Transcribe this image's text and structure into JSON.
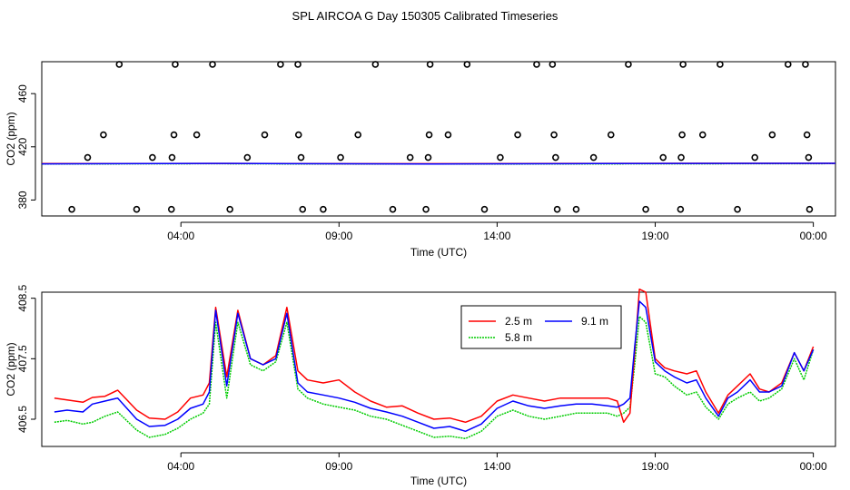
{
  "chart_data": {
    "title": "SPL AIRCOA G  Day 150305  Calibrated Timeseries",
    "charts": [
      {
        "type": "scatter+line",
        "ylabel": "CO2 (ppm)",
        "xlabel": "Time (UTC)",
        "ylim": [
          368,
          484
        ],
        "xlim": [
          -0.4,
          24.7
        ],
        "yticks": [
          380,
          420,
          460
        ],
        "ytick_labels": [
          "380",
          "420",
          "460"
        ],
        "xticks": [
          4,
          9,
          14,
          19,
          24
        ],
        "xtick_labels": [
          "04:00",
          "09:00",
          "14:00",
          "19:00",
          "00:00"
        ],
        "cal_points": [
          [
            0.55,
            373
          ],
          [
            1.05,
            412
          ],
          [
            1.55,
            429
          ],
          [
            2.05,
            482
          ],
          [
            2.6,
            373
          ],
          [
            3.1,
            412
          ],
          [
            3.7,
            373
          ],
          [
            3.72,
            412
          ],
          [
            3.78,
            429
          ],
          [
            3.82,
            482
          ],
          [
            4.5,
            429
          ],
          [
            5.0,
            482
          ],
          [
            5.55,
            373
          ],
          [
            6.1,
            412
          ],
          [
            6.65,
            429
          ],
          [
            7.15,
            482
          ],
          [
            7.7,
            482
          ],
          [
            7.72,
            429
          ],
          [
            7.8,
            412
          ],
          [
            7.85,
            373
          ],
          [
            8.5,
            373
          ],
          [
            9.05,
            412
          ],
          [
            9.6,
            429
          ],
          [
            10.15,
            482
          ],
          [
            10.7,
            373
          ],
          [
            11.25,
            412
          ],
          [
            11.82,
            412
          ],
          [
            11.85,
            429
          ],
          [
            11.88,
            482
          ],
          [
            11.75,
            373
          ],
          [
            12.45,
            429
          ],
          [
            13.05,
            482
          ],
          [
            13.6,
            373
          ],
          [
            14.1,
            412
          ],
          [
            14.65,
            429
          ],
          [
            15.25,
            482
          ],
          [
            15.75,
            482
          ],
          [
            15.8,
            429
          ],
          [
            15.85,
            412
          ],
          [
            15.9,
            373
          ],
          [
            16.5,
            373
          ],
          [
            17.05,
            412
          ],
          [
            17.6,
            429
          ],
          [
            18.15,
            482
          ],
          [
            18.7,
            373
          ],
          [
            19.25,
            412
          ],
          [
            19.8,
            373
          ],
          [
            19.82,
            412
          ],
          [
            19.85,
            429
          ],
          [
            19.88,
            482
          ],
          [
            20.5,
            429
          ],
          [
            21.05,
            482
          ],
          [
            21.6,
            373
          ],
          [
            22.15,
            412
          ],
          [
            22.7,
            429
          ],
          [
            23.2,
            482
          ],
          [
            23.75,
            482
          ],
          [
            23.8,
            429
          ],
          [
            23.85,
            412
          ],
          [
            23.88,
            373
          ]
        ],
        "series": [
          {
            "name": "2.5 m",
            "color": "#ff0000",
            "x": [
              -0.4,
              5.0,
              7.5,
              12.0,
              17.0,
              24.7
            ],
            "y": [
              407.4,
              407.5,
              407.4,
              407.3,
              407.5,
              407.6
            ]
          },
          {
            "name": "5.8 m",
            "color": "#00cc00",
            "x": [
              -0.4,
              5.0,
              7.5,
              12.0,
              17.0,
              24.7
            ],
            "y": [
              407.1,
              407.3,
              407.2,
              407.0,
              407.2,
              407.4
            ]
          },
          {
            "name": "9.1 m",
            "color": "#0000ff",
            "x": [
              -0.4,
              5.0,
              7.5,
              12.0,
              17.0,
              24.7
            ],
            "y": [
              407.2,
              407.5,
              407.3,
              407.1,
              407.4,
              407.6
            ]
          }
        ]
      },
      {
        "type": "line",
        "ylabel": "CO2 (ppm)",
        "xlabel": "Time (UTC)",
        "ylim": [
          406.05,
          408.6
        ],
        "xlim": [
          -0.4,
          24.7
        ],
        "yticks": [
          406.5,
          407.5,
          408.5
        ],
        "ytick_labels": [
          "406.5",
          "407.5",
          "408.5"
        ],
        "xticks": [
          4,
          9,
          14,
          19,
          24
        ],
        "xtick_labels": [
          "04:00",
          "09:00",
          "14:00",
          "19:00",
          "00:00"
        ],
        "legend": {
          "position": "top-right-inset",
          "entries": [
            "2.5 m",
            "9.1 m",
            "5.8 m"
          ]
        },
        "series": [
          {
            "name": "2.5 m",
            "color": "#ff0000",
            "x": [
              0.0,
              0.4,
              0.9,
              1.2,
              1.6,
              2.0,
              2.6,
              3.0,
              3.5,
              3.9,
              4.3,
              4.7,
              4.9,
              5.1,
              5.45,
              5.8,
              6.2,
              6.6,
              7.0,
              7.35,
              7.7,
              8.0,
              8.5,
              9.0,
              9.5,
              10.0,
              10.5,
              11.0,
              11.5,
              12.0,
              12.5,
              13.0,
              13.5,
              14.0,
              14.5,
              15.0,
              15.5,
              16.0,
              16.5,
              17.0,
              17.5,
              17.8,
              18.0,
              18.2,
              18.35,
              18.5,
              18.7,
              19.0,
              19.3,
              19.6,
              20.0,
              20.3,
              20.6,
              21.0,
              21.3,
              21.6,
              22.0,
              22.3,
              22.6,
              23.0,
              23.4,
              23.7,
              24.0
            ],
            "y": [
              406.85,
              406.82,
              406.78,
              406.86,
              406.88,
              406.98,
              406.65,
              406.52,
              406.5,
              406.62,
              406.85,
              406.9,
              407.1,
              408.35,
              407.2,
              408.3,
              407.5,
              407.4,
              407.55,
              408.35,
              407.3,
              407.15,
              407.1,
              407.15,
              406.95,
              406.8,
              406.7,
              406.72,
              406.6,
              406.5,
              406.52,
              406.45,
              406.55,
              406.8,
              406.9,
              406.85,
              406.8,
              406.85,
              406.85,
              406.85,
              406.85,
              406.8,
              406.45,
              406.6,
              407.6,
              408.65,
              408.6,
              407.5,
              407.35,
              407.3,
              407.25,
              407.3,
              406.95,
              406.6,
              406.9,
              407.05,
              407.25,
              407.0,
              406.95,
              407.1,
              407.6,
              407.3,
              407.7
            ]
          },
          {
            "name": "5.8 m",
            "color": "#00cc00",
            "x": [
              0.0,
              0.4,
              0.9,
              1.2,
              1.6,
              2.0,
              2.6,
              3.0,
              3.5,
              3.9,
              4.3,
              4.7,
              4.9,
              5.1,
              5.45,
              5.8,
              6.2,
              6.6,
              7.0,
              7.35,
              7.7,
              8.0,
              8.5,
              9.0,
              9.5,
              10.0,
              10.5,
              11.0,
              11.5,
              12.0,
              12.5,
              13.0,
              13.5,
              14.0,
              14.5,
              15.0,
              15.5,
              16.0,
              16.5,
              17.0,
              17.5,
              17.8,
              18.0,
              18.2,
              18.35,
              18.5,
              18.7,
              19.0,
              19.3,
              19.6,
              20.0,
              20.3,
              20.6,
              21.0,
              21.3,
              21.6,
              22.0,
              22.3,
              22.6,
              23.0,
              23.4,
              23.7,
              24.0
            ],
            "y": [
              406.45,
              406.48,
              406.42,
              406.45,
              406.55,
              406.62,
              406.32,
              406.2,
              406.25,
              406.35,
              406.5,
              406.6,
              406.75,
              408.1,
              406.85,
              408.1,
              407.4,
              407.3,
              407.45,
              408.1,
              407.0,
              406.85,
              406.75,
              406.7,
              406.65,
              406.55,
              406.5,
              406.4,
              406.3,
              406.2,
              406.22,
              406.18,
              406.3,
              406.55,
              406.65,
              406.55,
              406.5,
              406.55,
              406.6,
              406.6,
              406.6,
              406.55,
              406.6,
              406.7,
              407.4,
              408.2,
              408.1,
              407.25,
              407.2,
              407.05,
              406.9,
              406.95,
              406.7,
              406.5,
              406.75,
              406.85,
              406.95,
              406.8,
              406.85,
              407.0,
              407.5,
              407.15,
              407.65
            ]
          },
          {
            "name": "9.1 m",
            "color": "#0000ff",
            "x": [
              0.0,
              0.4,
              0.9,
              1.2,
              1.6,
              2.0,
              2.6,
              3.0,
              3.5,
              3.9,
              4.3,
              4.7,
              4.9,
              5.1,
              5.45,
              5.8,
              6.2,
              6.6,
              7.0,
              7.35,
              7.7,
              8.0,
              8.5,
              9.0,
              9.5,
              10.0,
              10.5,
              11.0,
              11.5,
              12.0,
              12.5,
              13.0,
              13.5,
              14.0,
              14.5,
              15.0,
              15.5,
              16.0,
              16.5,
              17.0,
              17.5,
              17.8,
              18.0,
              18.2,
              18.35,
              18.5,
              18.7,
              19.0,
              19.3,
              19.6,
              20.0,
              20.3,
              20.6,
              21.0,
              21.3,
              21.6,
              22.0,
              22.3,
              22.6,
              23.0,
              23.4,
              23.7,
              24.0
            ],
            "y": [
              406.62,
              406.65,
              406.62,
              406.75,
              406.8,
              406.85,
              406.5,
              406.38,
              406.4,
              406.5,
              406.68,
              406.75,
              406.95,
              408.3,
              407.05,
              408.25,
              407.5,
              407.4,
              407.5,
              408.25,
              407.1,
              406.95,
              406.9,
              406.85,
              406.78,
              406.68,
              406.62,
              406.55,
              406.45,
              406.35,
              406.38,
              406.3,
              406.42,
              406.68,
              406.8,
              406.72,
              406.68,
              406.72,
              406.75,
              406.75,
              406.72,
              406.7,
              406.75,
              406.85,
              407.7,
              408.45,
              408.35,
              407.45,
              407.3,
              407.2,
              407.1,
              407.15,
              406.85,
              406.55,
              406.85,
              406.95,
              407.15,
              406.95,
              406.95,
              407.05,
              407.6,
              407.3,
              407.65
            ]
          }
        ]
      }
    ]
  }
}
